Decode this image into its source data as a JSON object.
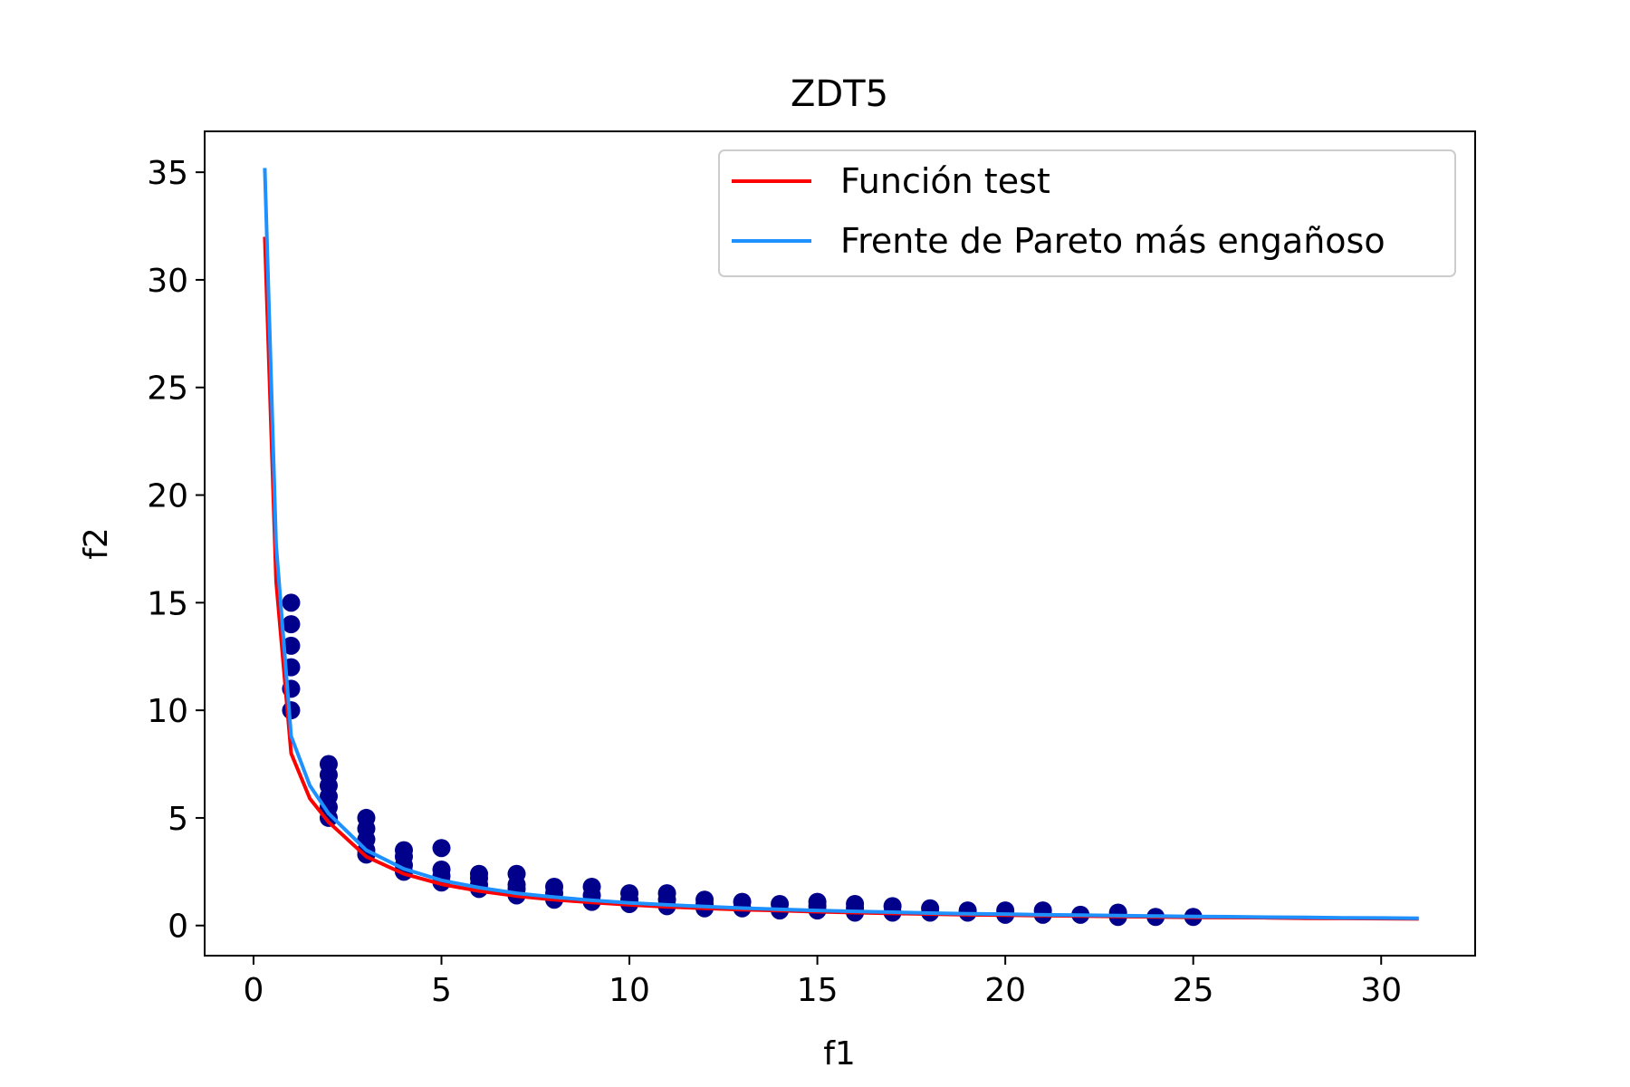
{
  "chart_data": {
    "type": "scatter",
    "title": "ZDT5",
    "xlabel": "f1",
    "ylabel": "f2",
    "xlim": [
      -1.3,
      32.5
    ],
    "ylim": [
      -1.4,
      36.9
    ],
    "xticks": [
      0,
      5,
      10,
      15,
      20,
      25,
      30
    ],
    "yticks": [
      0,
      5,
      10,
      15,
      20,
      25,
      30,
      35
    ],
    "grid": false,
    "legend": {
      "position": "top-right",
      "entries": [
        "Función test",
        "Frente de Pareto más engañoso"
      ]
    },
    "colors": {
      "test_function": "#ff0000",
      "pareto_front": "#1e90ff",
      "points": "#00008b"
    },
    "series": [
      {
        "name": "Función test",
        "kind": "line",
        "x": [
          0.3,
          0.6,
          1,
          1.5,
          2,
          3,
          4,
          5,
          6,
          7,
          8,
          9,
          10,
          11,
          12,
          13,
          14,
          15,
          16,
          17,
          18,
          19,
          20,
          21,
          22,
          23,
          24,
          25,
          26,
          27,
          28,
          29,
          30,
          31
        ],
        "y": [
          32,
          16,
          8,
          5.9,
          4.8,
          3.2,
          2.4,
          1.92,
          1.6,
          1.37,
          1.2,
          1.07,
          0.96,
          0.87,
          0.8,
          0.74,
          0.69,
          0.64,
          0.6,
          0.56,
          0.53,
          0.5,
          0.48,
          0.46,
          0.44,
          0.42,
          0.4,
          0.38,
          0.37,
          0.36,
          0.34,
          0.33,
          0.32,
          0.31
        ]
      },
      {
        "name": "Frente de Pareto más engañoso",
        "kind": "line",
        "x": [
          0.3,
          0.6,
          1,
          1.5,
          2,
          3,
          4,
          5,
          6,
          7,
          8,
          9,
          10,
          11,
          12,
          13,
          14,
          15,
          16,
          17,
          18,
          19,
          20,
          21,
          22,
          23,
          24,
          25,
          26,
          27,
          28,
          29,
          30,
          31
        ],
        "y": [
          35.2,
          17.7,
          8.8,
          6.5,
          5.2,
          3.5,
          2.63,
          2.1,
          1.76,
          1.5,
          1.32,
          1.17,
          1.05,
          0.96,
          0.88,
          0.81,
          0.75,
          0.7,
          0.66,
          0.62,
          0.58,
          0.55,
          0.53,
          0.5,
          0.48,
          0.46,
          0.44,
          0.42,
          0.41,
          0.39,
          0.38,
          0.36,
          0.35,
          0.34
        ]
      },
      {
        "name": "",
        "kind": "scatter",
        "x": [
          1,
          1,
          1,
          1,
          1,
          1,
          2,
          2,
          2,
          2,
          2,
          2,
          3,
          3,
          3,
          3,
          3,
          4,
          4,
          4,
          4,
          5,
          5,
          5,
          5,
          6,
          6,
          6,
          6,
          7,
          7,
          7,
          7,
          8,
          8,
          8,
          9,
          9,
          9,
          10,
          10,
          10,
          11,
          11,
          11,
          12,
          12,
          12,
          13,
          13,
          14,
          14,
          15,
          15,
          15,
          16,
          16,
          16,
          17,
          17,
          18,
          18,
          19,
          19,
          20,
          20,
          21,
          21,
          22,
          23,
          23,
          24,
          25
        ],
        "y": [
          15,
          14,
          13,
          12,
          11,
          10,
          7.5,
          7,
          6.5,
          6,
          5.5,
          5,
          5,
          4.5,
          4,
          3.5,
          3.3,
          3.5,
          3.2,
          2.8,
          2.5,
          3.6,
          2.6,
          2.3,
          2.0,
          2.4,
          2.2,
          1.9,
          1.7,
          2.4,
          1.9,
          1.7,
          1.4,
          1.8,
          1.5,
          1.2,
          1.8,
          1.4,
          1.1,
          1.5,
          1.2,
          1.0,
          1.5,
          1.2,
          0.9,
          1.2,
          1.0,
          0.8,
          1.1,
          0.8,
          1.0,
          0.7,
          1.1,
          0.9,
          0.7,
          1.0,
          0.8,
          0.6,
          0.9,
          0.6,
          0.8,
          0.6,
          0.7,
          0.6,
          0.7,
          0.5,
          0.7,
          0.5,
          0.5,
          0.6,
          0.4,
          0.4,
          0.4
        ]
      }
    ]
  }
}
